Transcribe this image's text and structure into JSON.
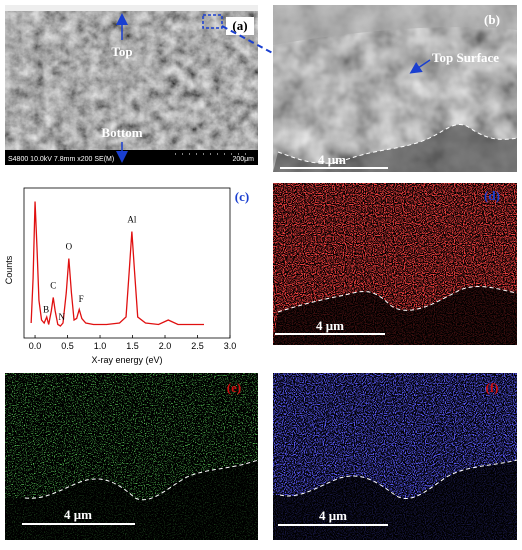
{
  "chart_data": {
    "type": "line",
    "panel_label": "(c)",
    "ylabel": "Counts",
    "xlabel": "X-ray energy (eV)",
    "x": [
      -0.06,
      -0.03,
      0.0,
      0.03,
      0.06,
      0.1,
      0.14,
      0.18,
      0.21,
      0.25,
      0.28,
      0.31,
      0.35,
      0.39,
      0.43,
      0.48,
      0.52,
      0.56,
      0.6,
      0.64,
      0.68,
      0.72,
      0.78,
      0.9,
      1.1,
      1.3,
      1.4,
      1.45,
      1.49,
      1.53,
      1.58,
      1.7,
      1.9,
      2.0,
      2.05,
      2.1,
      2.2,
      2.4,
      2.6
    ],
    "series": [
      {
        "color": "#e01010",
        "values": [
          10,
          40,
          91,
          60,
          25,
          12,
          10,
          14,
          9,
          18,
          27,
          18,
          9,
          8,
          10,
          30,
          53,
          30,
          12,
          13,
          19,
          13,
          10,
          9,
          9,
          10,
          14,
          45,
          71,
          45,
          14,
          10,
          9,
          11,
          12,
          11,
          9,
          9,
          9
        ]
      }
    ],
    "xlim": [
      -0.17,
      3.0
    ],
    "ylim": [
      0,
      100
    ],
    "xticks": [
      {
        "value": 0,
        "label": "0.0"
      },
      {
        "value": 0.5,
        "label": "0.5"
      },
      {
        "value": 1,
        "label": "1.0"
      },
      {
        "value": 1.5,
        "label": "1.5"
      },
      {
        "value": 2,
        "label": "2.0"
      },
      {
        "value": 2.5,
        "label": "2.5"
      },
      {
        "value": 3,
        "label": "3.0"
      }
    ],
    "annotations": [
      {
        "text": "B",
        "x": 0.17,
        "y": 17
      },
      {
        "text": "C",
        "x": 0.28,
        "y": 33
      },
      {
        "text": "N",
        "x": 0.41,
        "y": 12
      },
      {
        "text": "O",
        "x": 0.52,
        "y": 59
      },
      {
        "text": "F",
        "x": 0.71,
        "y": 24
      },
      {
        "text": "Al",
        "x": 1.49,
        "y": 77
      }
    ]
  },
  "panels": {
    "a": {
      "label": "(a)",
      "top": "Top",
      "bottom": "Bottom",
      "info": "S4800 10.0kV 7.8mm x200 SE(M)",
      "scale": "200μm"
    },
    "b": {
      "label": "(b)",
      "annotation": "Top Surface",
      "scale": "4 μm"
    },
    "d": {
      "label": "(d)",
      "scale": "4 μm"
    },
    "e": {
      "label": "(e)",
      "scale": "4 μm"
    },
    "f": {
      "label": "(f)",
      "scale": "4 μm"
    }
  }
}
